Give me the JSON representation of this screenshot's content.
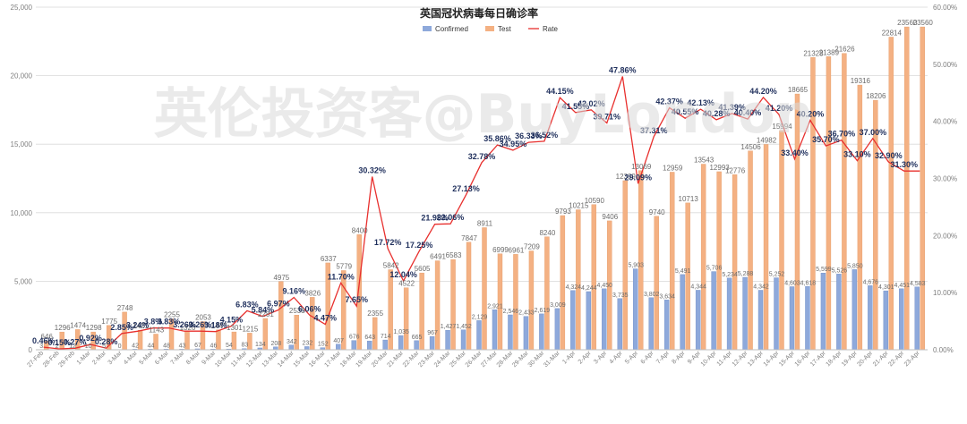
{
  "chart_data": {
    "type": "bar",
    "title": "英国冠状病毒每日确诊率",
    "watermark": "英伦投资客@BuyLondon",
    "categories": [
      "27-Feb",
      "28-Feb",
      "29-Feb",
      "1-Mar",
      "2-Mar",
      "3-Mar",
      "4-Mar",
      "5-Mar",
      "6-Mar",
      "7-Mar",
      "8-Mar",
      "9-Mar",
      "10-Mar",
      "11-Mar",
      "12-Mar",
      "13-Mar",
      "14-Mar",
      "15-Mar",
      "16-Mar",
      "17-Mar",
      "18-Mar",
      "19-Mar",
      "20-Mar",
      "21-Mar",
      "22-Mar",
      "23-Mar",
      "24-Mar",
      "25-Mar",
      "26-Mar",
      "27-Mar",
      "28-Mar",
      "29-Mar",
      "30-Mar",
      "31-Mar",
      "1-Apr",
      "2-Apr",
      "3-Apr",
      "4-Apr",
      "5-Apr",
      "6-Apr",
      "7-Apr",
      "8-Apr",
      "9-Apr",
      "10-Apr",
      "11-Apr",
      "12-Apr",
      "13-Apr",
      "14-Apr",
      "15-Apr",
      "16-Apr",
      "17-Apr",
      "18-Apr",
      "19-Apr",
      "20-Apr",
      "21-Apr",
      "22-Apr",
      "23-Apr"
    ],
    "series": [
      {
        "name": "Confirmed",
        "kind": "bar",
        "color": "#8ea9db",
        "values": [
          3,
          2,
          12,
          10,
          5,
          0,
          42,
          44,
          48,
          43,
          67,
          46,
          54,
          83,
          134,
          208,
          342,
          232,
          152,
          407,
          676,
          643,
          714,
          1035,
          665,
          967,
          1427,
          1452,
          2129,
          2921,
          2546,
          2433,
          2619,
          3009,
          4324,
          4244,
          4450,
          3735,
          5903,
          3802,
          3634,
          5491,
          4344,
          5706,
          5234,
          5288,
          4342,
          5252,
          4603,
          4618,
          5599,
          5526,
          5850,
          4676,
          4301,
          4451,
          4583
        ]
      },
      {
        "name": "Test",
        "kind": "bar",
        "color": "#f4b183",
        "values": [
          646,
          1296,
          1474,
          1298,
          1775,
          2748,
          1421,
          1143,
          2255,
          1320,
          2053,
          1447,
          1301,
          1215,
          2281,
          4975,
          2533,
          3826,
          6337,
          5779,
          8400,
          2355,
          5842,
          4522,
          5605,
          6491,
          6583,
          7847,
          8911,
          6999,
          6961,
          7209,
          8240,
          9793,
          10215,
          10590,
          9406,
          12339,
          13069,
          9740,
          12959,
          10713,
          13543,
          12993,
          12776,
          14506,
          14982,
          15994,
          18665,
          21328,
          21389,
          21626,
          19316,
          18206,
          22814,
          23560,
          23560
        ]
      },
      {
        "name": "Rate",
        "kind": "line",
        "color": "#e8302e",
        "values": [
          0.46,
          0.15,
          0.27,
          0.92,
          0.28,
          2.85,
          3.24,
          3.8,
          3.83,
          3.26,
          3.26,
          3.18,
          4.15,
          6.83,
          5.84,
          6.97,
          9.16,
          6.06,
          4.47,
          11.7,
          7.65,
          30.32,
          17.72,
          12.04,
          17.25,
          21.98,
          22.06,
          27.13,
          32.78,
          35.86,
          34.95,
          36.33,
          36.52,
          44.15,
          41.55,
          42.02,
          39.71,
          47.86,
          29.09,
          37.31,
          42.37,
          40.55,
          42.13,
          40.28,
          41.39,
          40.4,
          44.2,
          41.2,
          33.4,
          40.2,
          35.7,
          36.7,
          33.1,
          37.0,
          32.9,
          31.3,
          31.3
        ]
      }
    ],
    "rate_labels": [
      "0.46%",
      "0.15%",
      "0.27%",
      "0.92%",
      "0.28%",
      "2.85%",
      "3.24%",
      "3.8%",
      "3.83%",
      "3.26%",
      "3.26%",
      "3.18%",
      "4.15%",
      "6.83%",
      "5.84%",
      "6.97%",
      "9.16%",
      "6.06%",
      "4.47%",
      "11.70%",
      "7.65%",
      "30.32%",
      "17.72%",
      "12.04%",
      "17.25%",
      "21.98%",
      "22.06%",
      "27.13%",
      "32.78%",
      "35.86%",
      "34.95%",
      "36.33%",
      "36.52%",
      "44.15%",
      "41.55%",
      "42.02%",
      "39.71%",
      "47.86%",
      "29.09%",
      "37.31%",
      "42.37%",
      "40.55%",
      "42.13%",
      "40.28%",
      "41.39%",
      "40.40%",
      "44.20%",
      "41.20%",
      "33.40%",
      "40.20%",
      "35.70%",
      "36.70%",
      "33.10%",
      "37.00%",
      "32.90%",
      "31.30%",
      ""
    ],
    "ylim": [
      0,
      25000
    ],
    "yticks": [
      "0",
      "5,000",
      "10,000",
      "15,000",
      "20,000",
      "25,000"
    ],
    "y2lim": [
      0,
      60
    ],
    "y2ticks": [
      "0.00%",
      "10.00%",
      "20.00%",
      "30.00%",
      "40.00%",
      "50.00%",
      "60.00%"
    ],
    "legend": [
      "Confirmed",
      "Test",
      "Rate"
    ],
    "legend_position": "top-center",
    "grid": true
  }
}
